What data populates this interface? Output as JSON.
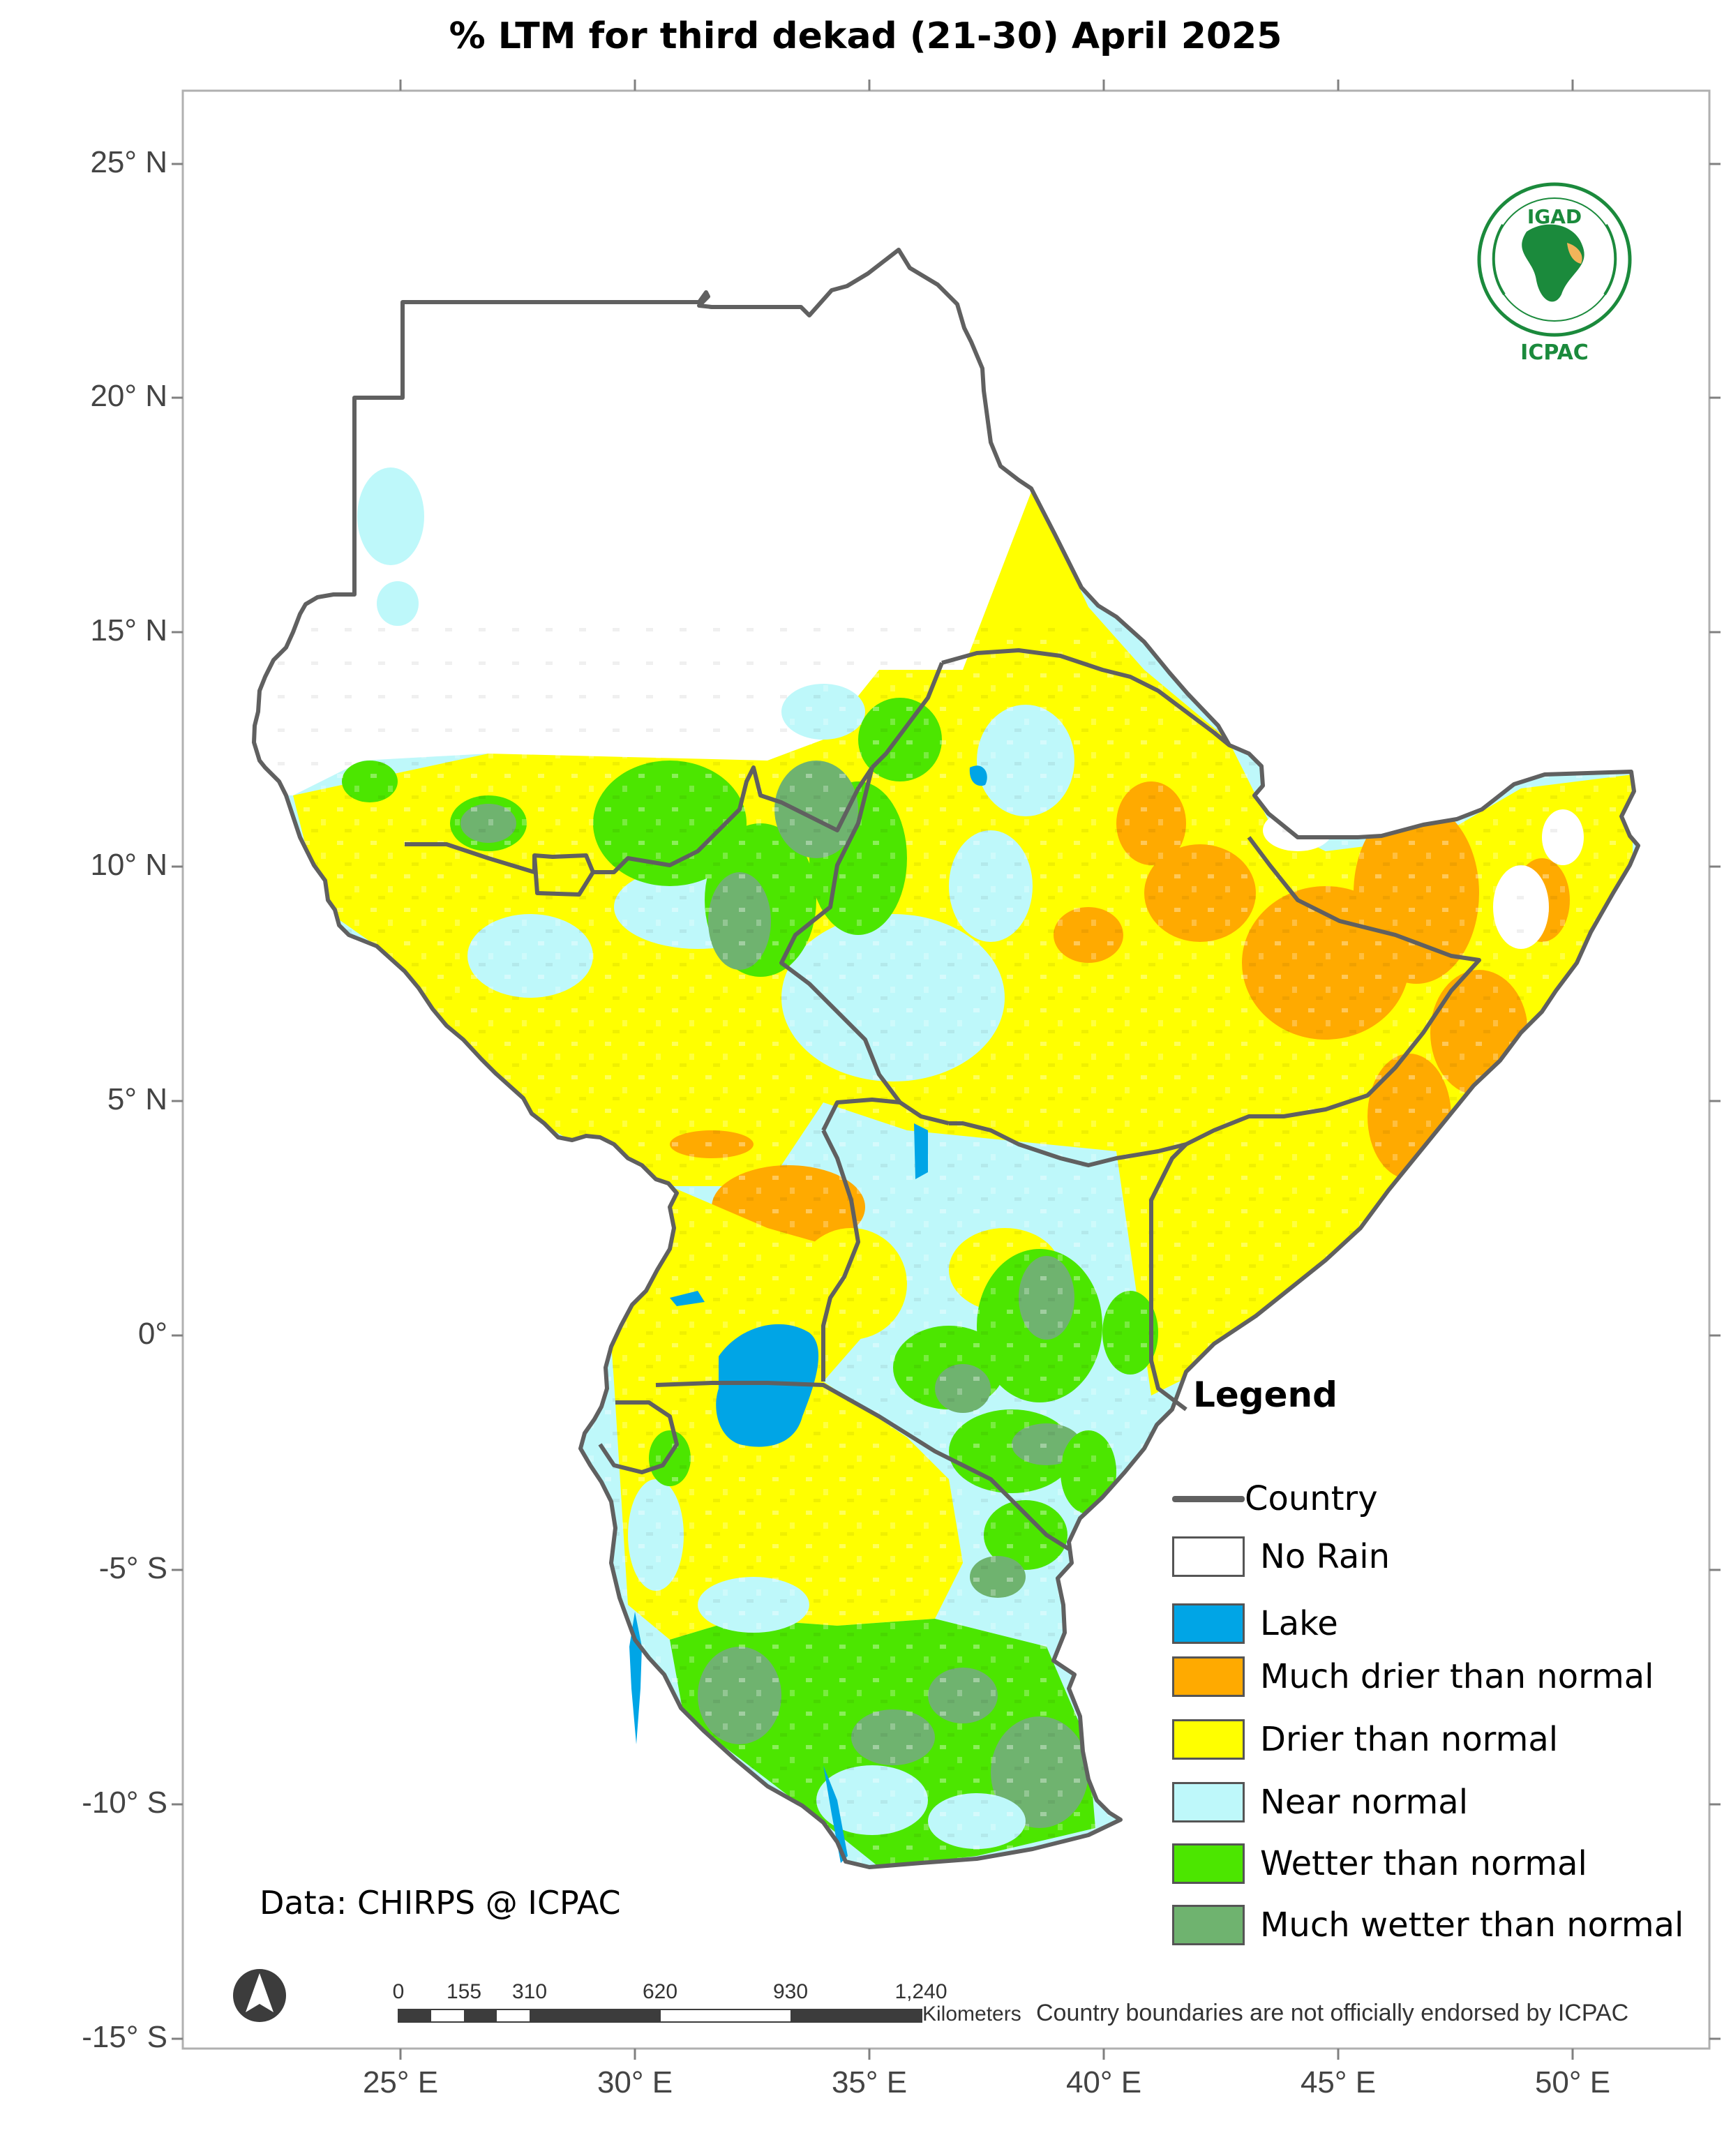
{
  "title": "% LTM  for  third dekad (21-30) April 2025",
  "axes": {
    "lat_labels": [
      "25° N",
      "20° N",
      "15° N",
      "10° N",
      "5° N",
      "0°",
      "-5° S",
      "-10° S",
      "-15° S"
    ],
    "lon_labels": [
      "25° E",
      "30° E",
      "35° E",
      "40° E",
      "45° E",
      "50° E"
    ]
  },
  "legend": {
    "title": "Legend",
    "items": [
      {
        "label": "Country",
        "kind": "line",
        "color": "#606060"
      },
      {
        "label": "No Rain",
        "kind": "box",
        "color": "#ffffff"
      },
      {
        "label": "Lake",
        "kind": "box",
        "color": "#00a5e6"
      },
      {
        "label": "Much drier than normal",
        "kind": "box",
        "color": "#ffaa00"
      },
      {
        "label": "Drier than normal",
        "kind": "box",
        "color": "#ffff00"
      },
      {
        "label": "Near normal",
        "kind": "box",
        "color": "#bef8fa"
      },
      {
        "label": "Wetter than normal",
        "kind": "box",
        "color": "#4ce600"
      },
      {
        "label": "Much wetter than normal",
        "kind": "box",
        "color": "#6fb36f"
      }
    ]
  },
  "credit": "Data: CHIRPS @ ICPAC",
  "scalebar": {
    "ticks": [
      "0",
      "155",
      "310",
      "620",
      "930",
      "1,240"
    ],
    "units": "Kilometers"
  },
  "disclaimer": "Country boundaries are not officially endorsed by ICPAC",
  "logo": {
    "top_text": "IGAD",
    "bottom_text": "ICPAC"
  }
}
